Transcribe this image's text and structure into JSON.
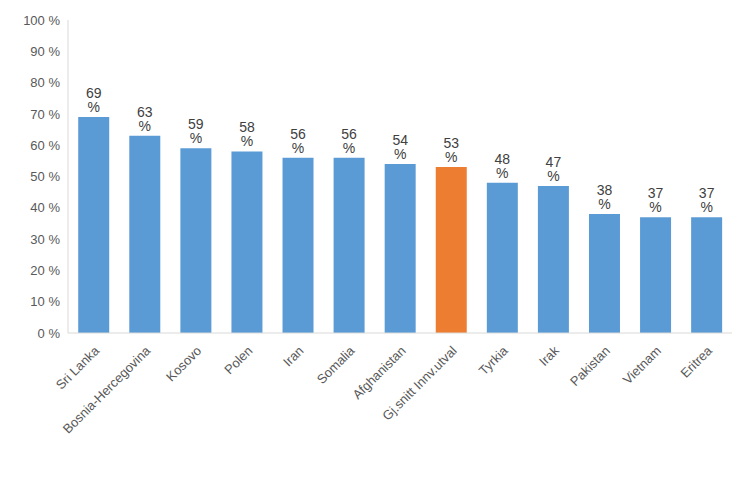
{
  "chart_data": {
    "type": "bar",
    "categories": [
      "Sri Lanka",
      "Bosnia-Hercegovina",
      "Kosovo",
      "Polen",
      "Iran",
      "Somalia",
      "Afghanistan",
      "Gj.snitt Innv.utval",
      "Tyrkia",
      "Irak",
      "Pakistan",
      "Vietnam",
      "Eritrea"
    ],
    "values": [
      69,
      63,
      59,
      58,
      56,
      56,
      54,
      53,
      48,
      47,
      38,
      37,
      37
    ],
    "value_labels": [
      "69 %",
      "63 %",
      "59 %",
      "58 %",
      "56 %",
      "56 %",
      "54 %",
      "53 %",
      "48 %",
      "47 %",
      "38 %",
      "37 %",
      "37 %"
    ],
    "colors": [
      "#5b9bd5",
      "#5b9bd5",
      "#5b9bd5",
      "#5b9bd5",
      "#5b9bd5",
      "#5b9bd5",
      "#5b9bd5",
      "#ed7d31",
      "#5b9bd5",
      "#5b9bd5",
      "#5b9bd5",
      "#5b9bd5",
      "#5b9bd5"
    ],
    "ylim": [
      0,
      100
    ],
    "yticks": [
      {
        "value": 0,
        "label": "0 %"
      },
      {
        "value": 10,
        "label": "10 %"
      },
      {
        "value": 20,
        "label": "20 %"
      },
      {
        "value": 30,
        "label": "30 %"
      },
      {
        "value": 40,
        "label": "40 %"
      },
      {
        "value": 50,
        "label": "50 %"
      },
      {
        "value": 60,
        "label": "60 %"
      },
      {
        "value": 70,
        "label": "70 %"
      },
      {
        "value": 80,
        "label": "80 %"
      },
      {
        "value": 90,
        "label": "90 %"
      },
      {
        "value": 100,
        "label": "100 %"
      }
    ],
    "data_labels": true,
    "grid": false
  }
}
